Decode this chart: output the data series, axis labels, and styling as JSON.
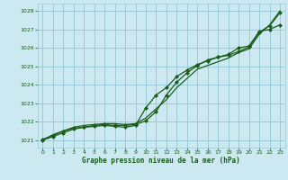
{
  "title": "Graphe pression niveau de la mer (hPa)",
  "xlabel_ticks": [
    0,
    1,
    2,
    3,
    4,
    5,
    6,
    7,
    8,
    9,
    10,
    11,
    12,
    13,
    14,
    15,
    16,
    17,
    18,
    19,
    20,
    21,
    22,
    23
  ],
  "yticks": [
    1021,
    1022,
    1023,
    1024,
    1025,
    1026,
    1027,
    1028
  ],
  "ylim": [
    1020.6,
    1028.4
  ],
  "xlim": [
    -0.5,
    23.5
  ],
  "bg_color": "#cce8f0",
  "grid_color": "#99ccd8",
  "line_color": "#1a5c1a",
  "marker_color": "#1a5c1a",
  "title_color": "#1a5c1a",
  "tick_color": "#1a5c1a",
  "line1": [
    1021.0,
    1021.3,
    1021.5,
    1021.7,
    1021.8,
    1021.85,
    1021.9,
    1021.9,
    1021.85,
    1021.9,
    1022.2,
    1022.7,
    1023.2,
    1023.85,
    1024.35,
    1024.85,
    1025.05,
    1025.25,
    1025.45,
    1025.75,
    1025.95,
    1026.75,
    1027.25,
    1028.0
  ],
  "line2": [
    1021.0,
    1021.2,
    1021.4,
    1021.6,
    1021.7,
    1021.8,
    1021.85,
    1021.8,
    1021.8,
    1021.85,
    1022.05,
    1022.55,
    1023.45,
    1024.15,
    1024.65,
    1025.05,
    1025.35,
    1025.5,
    1025.6,
    1025.8,
    1026.05,
    1026.85,
    1027.2,
    1027.9
  ],
  "line3": [
    1021.05,
    1021.25,
    1021.5,
    1021.65,
    1021.7,
    1021.75,
    1021.8,
    1021.75,
    1021.7,
    1021.8,
    1022.75,
    1023.45,
    1023.85,
    1024.45,
    1024.8,
    1025.1,
    1025.3,
    1025.5,
    1025.65,
    1026.0,
    1026.1,
    1026.9,
    1027.0,
    1027.25
  ]
}
